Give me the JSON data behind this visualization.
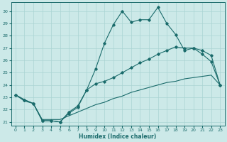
{
  "xlabel": "Humidex (Indice chaleur)",
  "xlim": [
    -0.5,
    23.5
  ],
  "ylim": [
    20.7,
    30.7
  ],
  "yticks": [
    21,
    22,
    23,
    24,
    25,
    26,
    27,
    28,
    29,
    30
  ],
  "xticks": [
    0,
    1,
    2,
    3,
    4,
    5,
    6,
    7,
    8,
    9,
    10,
    11,
    12,
    13,
    14,
    15,
    16,
    17,
    18,
    19,
    20,
    21,
    22,
    23
  ],
  "bg_color": "#cce9e8",
  "line_color": "#1a6b6b",
  "grid_color": "#aad4d3",
  "line1_x": [
    0,
    1,
    2,
    3,
    4,
    5,
    6,
    7,
    8,
    9,
    10,
    11,
    12,
    13,
    14,
    15,
    16,
    17,
    18,
    19,
    20,
    21,
    22,
    23
  ],
  "line1_y": [
    23.2,
    22.8,
    22.5,
    21.1,
    21.1,
    21.0,
    21.7,
    22.2,
    23.6,
    25.3,
    27.4,
    28.9,
    30.0,
    29.1,
    29.3,
    29.3,
    30.3,
    29.0,
    28.1,
    26.8,
    27.0,
    26.5,
    25.9,
    24.0
  ],
  "line2_x": [
    0,
    1,
    2,
    3,
    4,
    5,
    6,
    7,
    8,
    9,
    10,
    11,
    12,
    13,
    14,
    15,
    16,
    17,
    18,
    19,
    20,
    21,
    22,
    23
  ],
  "line2_y": [
    23.2,
    22.8,
    22.5,
    21.1,
    21.1,
    21.0,
    21.8,
    22.3,
    23.6,
    24.1,
    24.3,
    24.6,
    25.0,
    25.4,
    25.8,
    26.1,
    26.5,
    26.8,
    27.1,
    27.0,
    27.0,
    26.8,
    26.4,
    24.0
  ],
  "line3_x": [
    0,
    1,
    2,
    3,
    4,
    5,
    6,
    7,
    8,
    9,
    10,
    11,
    12,
    13,
    14,
    15,
    16,
    17,
    18,
    19,
    20,
    21,
    22,
    23
  ],
  "line3_y": [
    23.2,
    22.7,
    22.5,
    21.2,
    21.2,
    21.2,
    21.5,
    21.8,
    22.1,
    22.4,
    22.6,
    22.9,
    23.1,
    23.4,
    23.6,
    23.8,
    24.0,
    24.2,
    24.3,
    24.5,
    24.6,
    24.7,
    24.8,
    24.0
  ]
}
